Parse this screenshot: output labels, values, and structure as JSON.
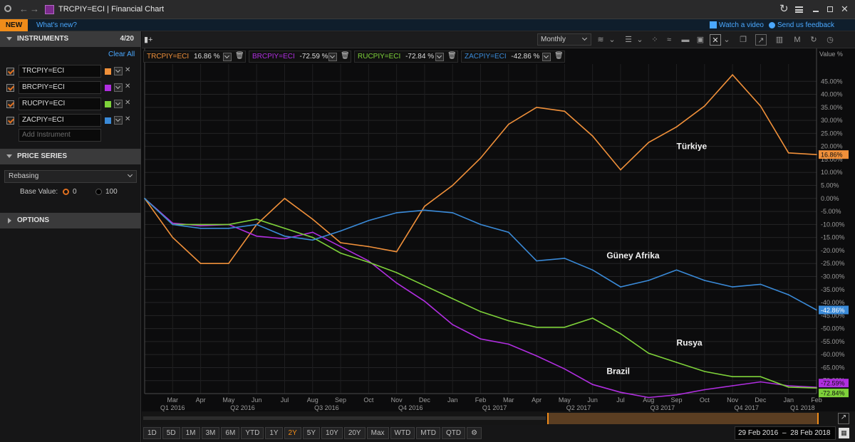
{
  "window": {
    "title": "TRCPIY=ECI | Financial Chart",
    "icon_color": "#7b2a8c"
  },
  "newbar": {
    "badge": "NEW",
    "whats_new": "What's new?",
    "watch_video": "Watch a video",
    "send_feedback": "Send us feedback"
  },
  "sidebar": {
    "instruments_title": "INSTRUMENTS",
    "instruments_count": "4/20",
    "clear_all": "Clear All",
    "instruments": [
      {
        "ric": "TRCPIY=ECI",
        "color": "#f0903a"
      },
      {
        "ric": "BRCPIY=ECI",
        "color": "#b02ee0"
      },
      {
        "ric": "RUCPIY=ECI",
        "color": "#7ed23a"
      },
      {
        "ric": "ZACPIY=ECI",
        "color": "#3a8ad8"
      }
    ],
    "add_placeholder": "Add Instrument",
    "price_series_title": "PRICE SERIES",
    "rebasing": "Rebasing",
    "base_value_label": "Base Value:",
    "base_options": [
      "0",
      "100"
    ],
    "options_title": "OPTIONS"
  },
  "toolbar": {
    "interval": "Monthly"
  },
  "legend": [
    {
      "ric": "TRCPIY=ECI",
      "value": "16.86 %",
      "color": "#f0903a"
    },
    {
      "ric": "BRCPIY=ECI",
      "value": "-72.59 %",
      "color": "#b02ee0"
    },
    {
      "ric": "RUCPIY=ECI",
      "value": "-72.84 %",
      "color": "#7ed23a"
    },
    {
      "ric": "ZACPIY=ECI",
      "value": "-42.86 %",
      "color": "#3a8ad8"
    }
  ],
  "chart_data": {
    "type": "line",
    "ylabel": "Value %",
    "ylim": [
      -75,
      50
    ],
    "y_ticks": [
      45,
      40,
      35,
      30,
      25,
      20,
      15,
      10,
      5,
      0,
      -5,
      -10,
      -15,
      -20,
      -25,
      -30,
      -35,
      -40,
      -45,
      -50,
      -55,
      -60,
      -65,
      -70,
      -75
    ],
    "y_tick_labels": [
      "45.00%",
      "40.00%",
      "35.00%",
      "30.00%",
      "25.00%",
      "20.00%",
      "15.00%",
      "10.00%",
      "5.00%",
      "0.00%",
      "-5.00%",
      "-10.00%",
      "-15.00%",
      "-20.00%",
      "-25.00%",
      "-30.00%",
      "-35.00%",
      "-40.00%",
      "-45.00%",
      "-50.00%",
      "-55.00%",
      "-60.00%",
      "-65.00%",
      "-70.00%",
      "-75.00%"
    ],
    "x": [
      "Feb 2016",
      "Mar",
      "Apr",
      "May",
      "Jun",
      "Jul",
      "Aug",
      "Sep",
      "Oct",
      "Nov",
      "Dec",
      "Jan",
      "Feb",
      "Mar",
      "Apr",
      "May",
      "Jun",
      "Jul",
      "Aug",
      "Sep",
      "Oct",
      "Nov",
      "Dec",
      "Jan",
      "Feb"
    ],
    "month_labels": [
      "Mar",
      "Apr",
      "May",
      "Jun",
      "Jul",
      "Aug",
      "Sep",
      "Oct",
      "Nov",
      "Dec",
      "Jan",
      "Feb",
      "Mar",
      "Apr",
      "May",
      "Jun",
      "Jul",
      "Aug",
      "Sep",
      "Oct",
      "Nov",
      "Dec",
      "Jan",
      "Feb"
    ],
    "quarter_labels": [
      {
        "label": "Q1 2016",
        "index": 1
      },
      {
        "label": "Q2 2016",
        "index": 3.5
      },
      {
        "label": "Q3 2016",
        "index": 6.5
      },
      {
        "label": "Q4 2016",
        "index": 9.5
      },
      {
        "label": "Q1 2017",
        "index": 12.5
      },
      {
        "label": "Q2 2017",
        "index": 15.5
      },
      {
        "label": "Q3 2017",
        "index": 18.5
      },
      {
        "label": "Q4 2017",
        "index": 21.5
      },
      {
        "label": "Q1 2018",
        "index": 23.5
      }
    ],
    "series": [
      {
        "name": "TRCPIY=ECI",
        "color": "#f0903a",
        "last_label": "16.86%",
        "values": [
          0,
          -15,
          -25,
          -25,
          -10,
          0,
          -8,
          -17,
          -18.5,
          -20.5,
          -3,
          5,
          15.5,
          28.5,
          35,
          33.5,
          24,
          11,
          21.5,
          27.5,
          35.5,
          47.5,
          35.5,
          17.5,
          16.86
        ]
      },
      {
        "name": "BRCPIY=ECI",
        "color": "#b02ee0",
        "last_label": "-72.59%",
        "values": [
          0,
          -9.5,
          -10.5,
          -10,
          -14.5,
          -15.5,
          -13,
          -18.5,
          -24,
          -32.5,
          -39.5,
          -48.5,
          -54,
          -56,
          -60.5,
          -65.5,
          -71.5,
          -74.5,
          -76.5,
          -75.5,
          -73.5,
          -72,
          -70.5,
          -72,
          -72.59
        ]
      },
      {
        "name": "RUCPIY=ECI",
        "color": "#7ed23a",
        "last_label": "-72.84%",
        "values": [
          0,
          -10,
          -10,
          -10,
          -8,
          -11.5,
          -15,
          -21,
          -24.5,
          -28.5,
          -33.5,
          -38.5,
          -43.5,
          -47,
          -49.5,
          -49.5,
          -46,
          -52,
          -59.5,
          -63,
          -66.5,
          -68.5,
          -68.5,
          -72.5,
          -72.84
        ]
      },
      {
        "name": "ZACPIY=ECI",
        "color": "#3a8ad8",
        "last_label": "-42.86%",
        "values": [
          0,
          -10,
          -11.5,
          -11.5,
          -10,
          -14.5,
          -16,
          -12.5,
          -8.5,
          -5.5,
          -4.5,
          -5.5,
          -10,
          -13,
          -24,
          -23,
          -27.5,
          -34,
          -31.5,
          -27.5,
          -31.5,
          -34,
          -33,
          -37,
          -42.86
        ]
      }
    ],
    "annotations": [
      {
        "text": "Türkiye",
        "series": 0,
        "at_index": 19,
        "at_value": 19
      },
      {
        "text": "Güney Afrika",
        "series": 3,
        "at_index": 16.5,
        "at_value": -23
      },
      {
        "text": "Rusya",
        "series": 2,
        "at_index": 19,
        "at_value": -56.5
      },
      {
        "text": "Brazil",
        "series": 1,
        "at_index": 16.5,
        "at_value": -67.5
      }
    ]
  },
  "periods": [
    "1D",
    "5D",
    "1M",
    "3M",
    "6M",
    "YTD",
    "1Y",
    "2Y",
    "5Y",
    "10Y",
    "20Y",
    "Max",
    "WTD",
    "MTD",
    "QTD"
  ],
  "active_period": "2Y",
  "date_range": {
    "from": "29 Feb 2016",
    "sep": "–",
    "to": "28 Feb 2018"
  }
}
